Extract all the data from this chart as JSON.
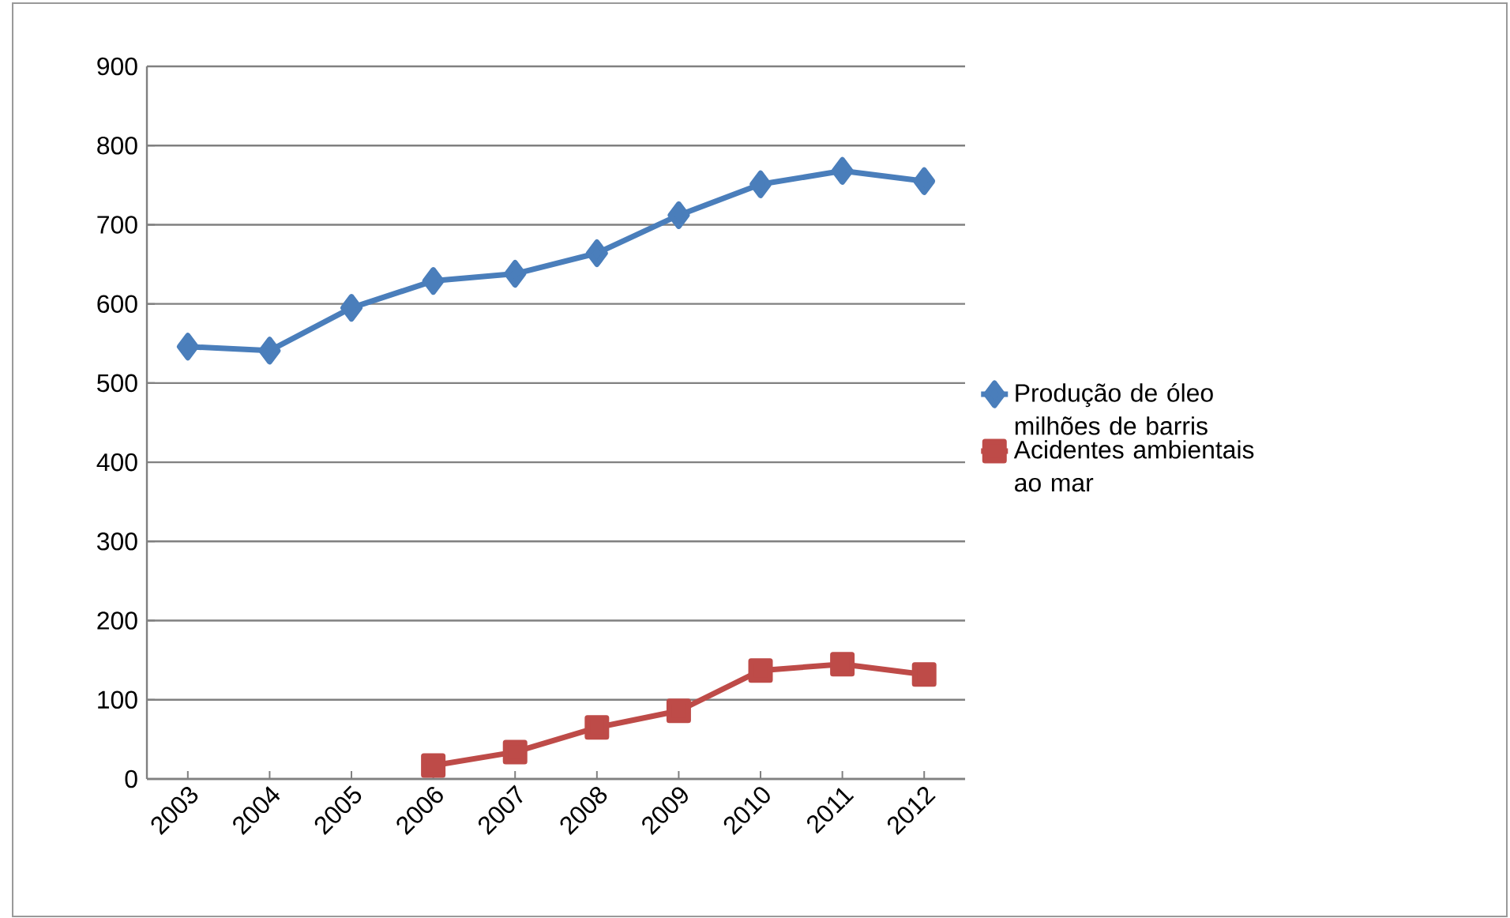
{
  "chart_data": {
    "type": "line",
    "categories": [
      "2003",
      "2004",
      "2005",
      "2006",
      "2007",
      "2008",
      "2009",
      "2010",
      "2011",
      "2012"
    ],
    "series": [
      {
        "name": "Produção de óleo milhões de barris",
        "color": "#4a7ebb",
        "marker": "diamond",
        "values": [
          546,
          541,
          595,
          629,
          638,
          664,
          712,
          751,
          768,
          755
        ]
      },
      {
        "name": "Acidentes ambientais ao mar",
        "color": "#be4b48",
        "marker": "square",
        "values": [
          null,
          null,
          null,
          17,
          34,
          65,
          86,
          137,
          145,
          132
        ]
      }
    ],
    "ylim": [
      0,
      900
    ],
    "yticks": [
      0,
      100,
      200,
      300,
      400,
      500,
      600,
      700,
      800,
      900
    ],
    "grid": "y",
    "legend": "right",
    "line_style": "solid"
  }
}
